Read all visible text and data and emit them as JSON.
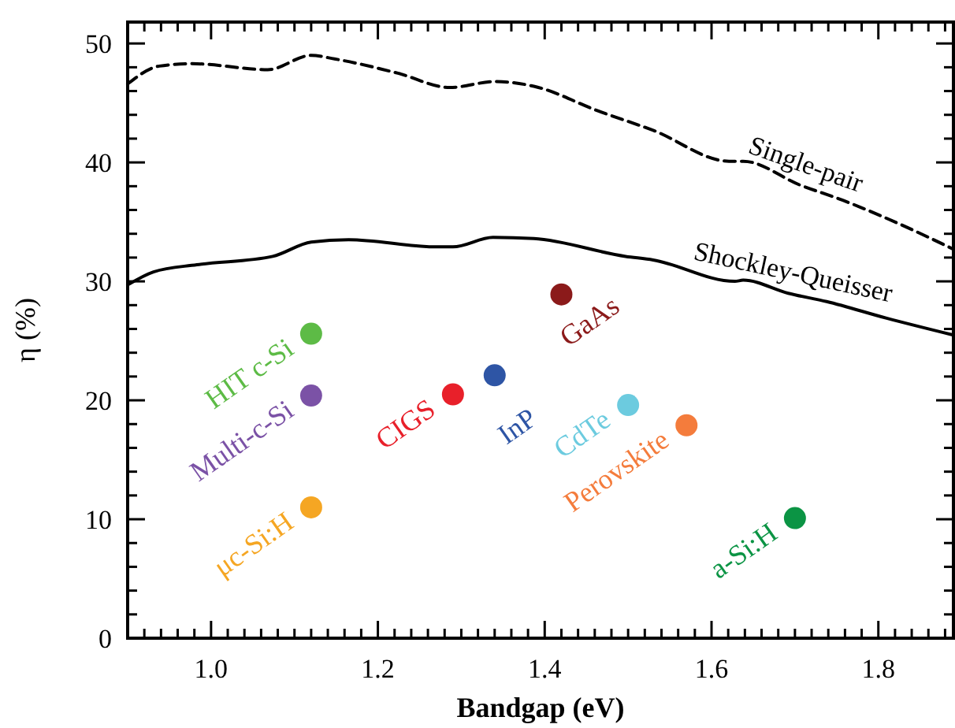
{
  "chart_data": {
    "type": "scatter",
    "xlabel": "Bandgap (eV)",
    "ylabel": "η (%)",
    "xlim": [
      0.9,
      1.89
    ],
    "ylim": [
      0,
      51.8
    ],
    "xticks": [
      {
        "value": 0.9,
        "label": null
      },
      {
        "value": 0.92,
        "label": null
      },
      {
        "value": 0.94,
        "label": null
      },
      {
        "value": 0.96,
        "label": null
      },
      {
        "value": 0.98,
        "label": null
      },
      {
        "value": 1.0,
        "label": "1.0"
      },
      {
        "value": 1.02,
        "label": null
      },
      {
        "value": 1.04,
        "label": null
      },
      {
        "value": 1.06,
        "label": null
      },
      {
        "value": 1.08,
        "label": null
      },
      {
        "value": 1.1,
        "label": null
      },
      {
        "value": 1.12,
        "label": null
      },
      {
        "value": 1.14,
        "label": null
      },
      {
        "value": 1.16,
        "label": null
      },
      {
        "value": 1.18,
        "label": null
      },
      {
        "value": 1.2,
        "label": "1.2"
      },
      {
        "value": 1.22,
        "label": null
      },
      {
        "value": 1.24,
        "label": null
      },
      {
        "value": 1.26,
        "label": null
      },
      {
        "value": 1.28,
        "label": null
      },
      {
        "value": 1.3,
        "label": null
      },
      {
        "value": 1.32,
        "label": null
      },
      {
        "value": 1.34,
        "label": null
      },
      {
        "value": 1.36,
        "label": null
      },
      {
        "value": 1.38,
        "label": null
      },
      {
        "value": 1.4,
        "label": "1.4"
      },
      {
        "value": 1.42,
        "label": null
      },
      {
        "value": 1.44,
        "label": null
      },
      {
        "value": 1.46,
        "label": null
      },
      {
        "value": 1.48,
        "label": null
      },
      {
        "value": 1.5,
        "label": null
      },
      {
        "value": 1.52,
        "label": null
      },
      {
        "value": 1.54,
        "label": null
      },
      {
        "value": 1.56,
        "label": null
      },
      {
        "value": 1.58,
        "label": null
      },
      {
        "value": 1.6,
        "label": "1.6"
      },
      {
        "value": 1.62,
        "label": null
      },
      {
        "value": 1.64,
        "label": null
      },
      {
        "value": 1.66,
        "label": null
      },
      {
        "value": 1.68,
        "label": null
      },
      {
        "value": 1.7,
        "label": null
      },
      {
        "value": 1.72,
        "label": null
      },
      {
        "value": 1.74,
        "label": null
      },
      {
        "value": 1.76,
        "label": null
      },
      {
        "value": 1.78,
        "label": null
      },
      {
        "value": 1.8,
        "label": "1.8"
      },
      {
        "value": 1.82,
        "label": null
      },
      {
        "value": 1.84,
        "label": null
      },
      {
        "value": 1.86,
        "label": null
      },
      {
        "value": 1.88,
        "label": null
      }
    ],
    "yticks": [
      0,
      {
        "value": 2,
        "label": null
      },
      {
        "value": 4,
        "label": null
      },
      {
        "value": 6,
        "label": null
      },
      {
        "value": 8,
        "label": null
      },
      10,
      {
        "value": 12,
        "label": null
      },
      {
        "value": 14,
        "label": null
      },
      {
        "value": 16,
        "label": null
      },
      {
        "value": 18,
        "label": null
      },
      20,
      {
        "value": 22,
        "label": null
      },
      {
        "value": 24,
        "label": null
      },
      {
        "value": 26,
        "label": null
      },
      {
        "value": 28,
        "label": null
      },
      30,
      {
        "value": 32,
        "label": null
      },
      {
        "value": 34,
        "label": null
      },
      {
        "value": 36,
        "label": null
      },
      {
        "value": 38,
        "label": null
      },
      40,
      {
        "value": 42,
        "label": null
      },
      {
        "value": 44,
        "label": null
      },
      {
        "value": 46,
        "label": null
      },
      {
        "value": 48,
        "label": null
      },
      50
    ],
    "grid": false,
    "marker": "circle",
    "series": [
      {
        "name": "Single-pair",
        "type": "line",
        "line_style": "dashed",
        "marker": "none",
        "color": "#000000",
        "x": [
          0.9,
          0.938,
          0.977,
          1.068,
          1.12,
          1.148,
          1.224,
          1.286,
          1.341,
          1.387,
          1.465,
          1.53,
          1.621,
          1.638,
          1.706,
          1.758,
          1.823,
          1.89
        ],
        "values": [
          46.6,
          48.1,
          48.3,
          47.8,
          49.0,
          48.7,
          47.5,
          46.3,
          46.8,
          46.4,
          44.3,
          42.7,
          40.1,
          40.1,
          38.1,
          36.8,
          34.9,
          32.7
        ]
      },
      {
        "name": "Shockley-Queisser",
        "type": "line",
        "line_style": "solid",
        "marker": "none",
        "color": "#000000",
        "x": [
          0.9,
          0.931,
          0.983,
          1.074,
          1.12,
          1.165,
          1.27,
          1.29,
          1.338,
          1.387,
          1.497,
          1.53,
          1.628,
          1.638,
          1.692,
          1.738,
          1.81,
          1.889
        ],
        "values": [
          29.7,
          30.8,
          31.4,
          32.1,
          33.3,
          33.5,
          32.9,
          32.9,
          33.7,
          33.6,
          32.1,
          31.8,
          30.0,
          30.1,
          29.0,
          28.3,
          26.9,
          25.5
        ]
      },
      {
        "name": "HIT c-Si",
        "color": "#5dbb46",
        "x": [
          1.12
        ],
        "values": [
          25.6
        ]
      },
      {
        "name": "Multi-c-Si",
        "color": "#7b52a6",
        "x": [
          1.12
        ],
        "values": [
          20.4
        ]
      },
      {
        "name": "μc-Si:H",
        "color": "#f5a623",
        "x": [
          1.12
        ],
        "values": [
          11.0
        ]
      },
      {
        "name": "CIGS",
        "color": "#e8202a",
        "x": [
          1.29
        ],
        "values": [
          20.5
        ]
      },
      {
        "name": "InP",
        "color": "#2e55a5",
        "x": [
          1.34
        ],
        "values": [
          22.1
        ]
      },
      {
        "name": "GaAs",
        "color": "#8b1a1a",
        "x": [
          1.42
        ],
        "values": [
          28.9
        ]
      },
      {
        "name": "CdTe",
        "color": "#6ccbdf",
        "x": [
          1.5
        ],
        "values": [
          19.6
        ]
      },
      {
        "name": "Perovskite",
        "color": "#f47c3c",
        "x": [
          1.57
        ],
        "values": [
          17.9
        ]
      },
      {
        "name": "a-Si:H",
        "color": "#0b9444",
        "x": [
          1.7
        ],
        "values": [
          10.1
        ]
      }
    ]
  }
}
